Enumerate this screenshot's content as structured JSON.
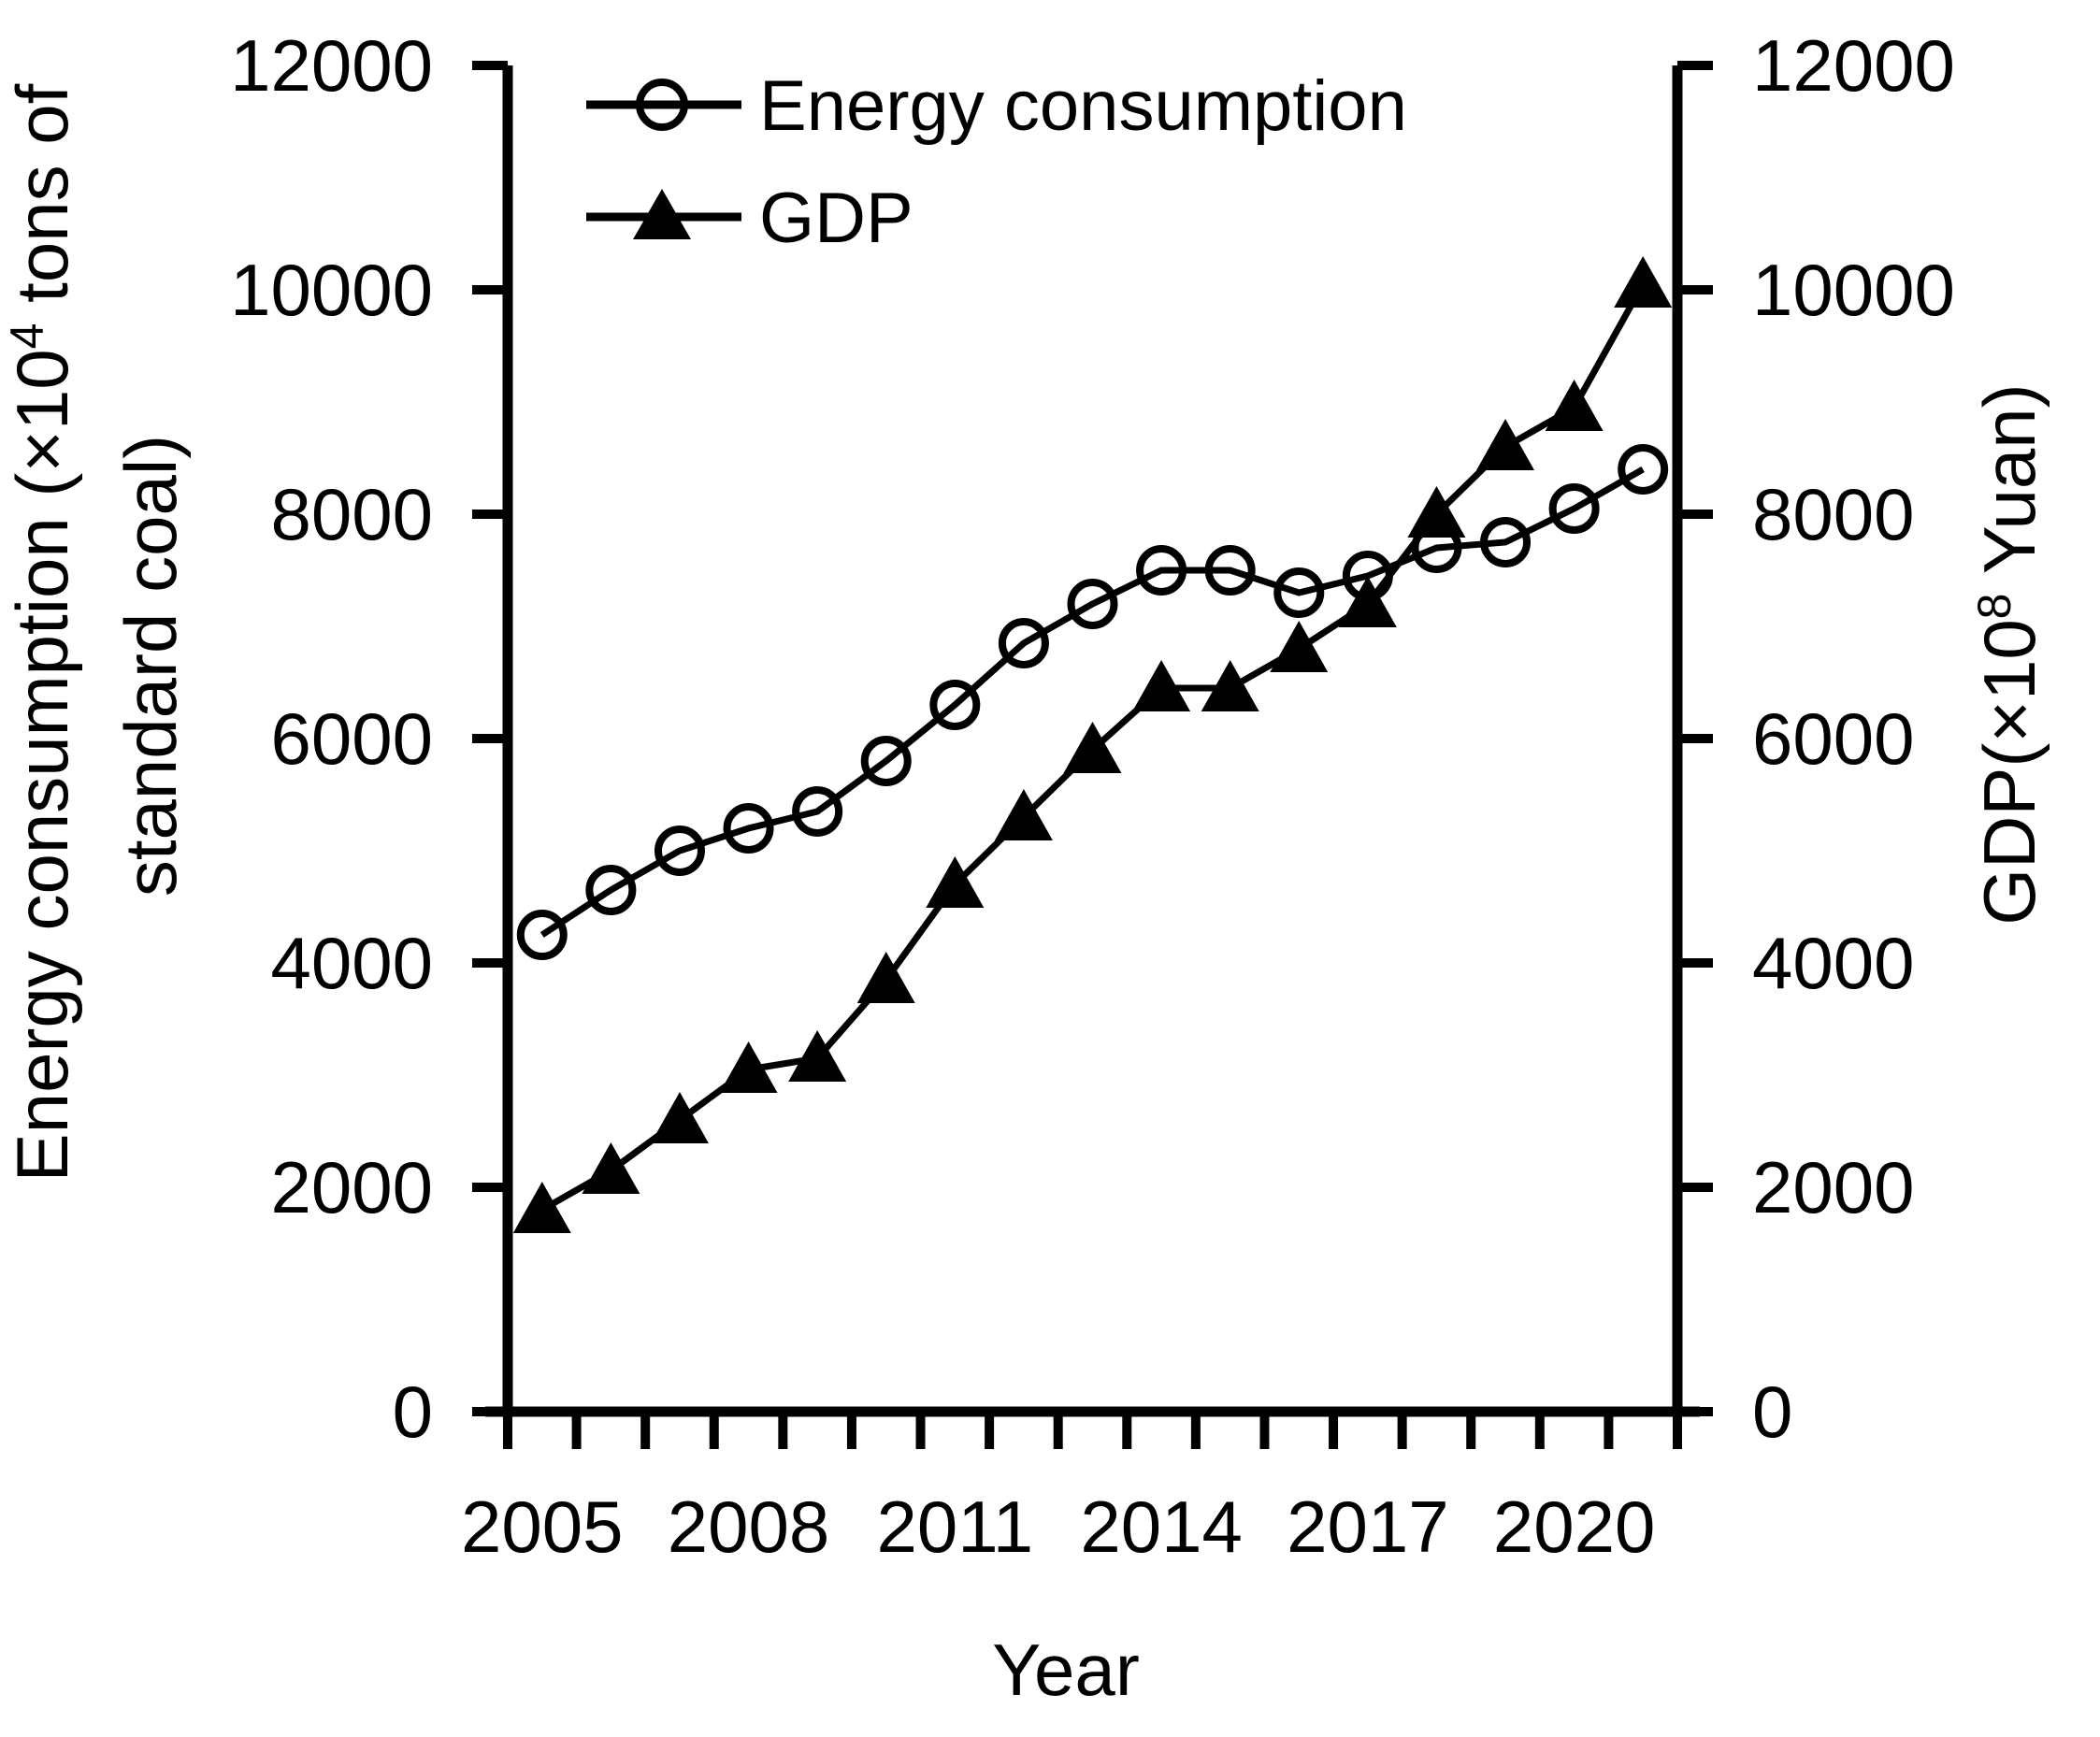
{
  "chart_data": {
    "type": "line",
    "title": "",
    "xlabel": "Year",
    "x": [
      2005,
      2006,
      2007,
      2008,
      2009,
      2010,
      2011,
      2012,
      2013,
      2014,
      2015,
      2016,
      2017,
      2018,
      2019,
      2020,
      2021
    ],
    "series": [
      {
        "name": "Energy consumption",
        "axis": "left",
        "marker": "open-circle",
        "values": [
          4250,
          4650,
          5000,
          5200,
          5350,
          5800,
          6300,
          6850,
          7200,
          7500,
          7500,
          7300,
          7450,
          7700,
          7750,
          8050,
          8400
        ]
      },
      {
        "name": "GDP",
        "axis": "right",
        "marker": "filled-triangle",
        "values": [
          1800,
          2150,
          2600,
          3050,
          3150,
          3850,
          4700,
          5300,
          5900,
          6450,
          6450,
          6800,
          7200,
          8000,
          8600,
          8950,
          10050
        ]
      }
    ],
    "left_axis": {
      "min": 0,
      "max": 12000,
      "tick_step": 2000,
      "ticks": [
        0,
        2000,
        4000,
        6000,
        8000,
        10000,
        12000
      ]
    },
    "right_axis": {
      "min": 0,
      "max": 12000,
      "tick_step": 2000,
      "ticks": [
        0,
        2000,
        4000,
        6000,
        8000,
        10000,
        12000
      ]
    },
    "x_tick_labels": [
      2005,
      2008,
      2011,
      2014,
      2017,
      2020
    ],
    "grid": "off",
    "legend_position": "top-left-inside",
    "colors": {
      "foreground": "#000000",
      "background": "#ffffff"
    }
  },
  "labels": {
    "xlabel": "Year",
    "left_axis_title_line1": {
      "pre": "Energy consumption (×10",
      "sup": "4",
      "post": " tons of"
    },
    "left_axis_title_line2": "standard coal)",
    "right_axis_title": {
      "pre": "GDP(×10",
      "sup": "8",
      "post": " Yuan)"
    },
    "legend_energy": "Energy consumption",
    "legend_gdp": "GDP"
  }
}
